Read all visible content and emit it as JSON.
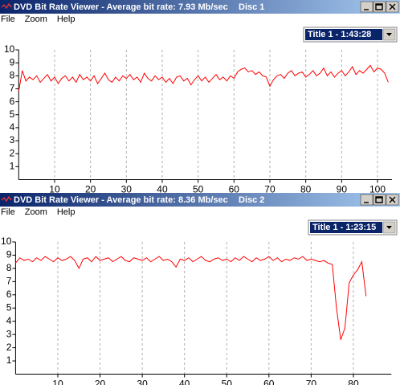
{
  "windows": [
    {
      "title": "DVD Bit Rate Viewer - Average bit rate: 7.93 Mb/sec",
      "disc": "Disc 1",
      "menu": [
        "File",
        "Zoom",
        "Help"
      ],
      "selector": "Title 1 - 1:43:28"
    },
    {
      "title": "DVD Bit Rate Viewer - Average bit rate: 8.36 Mb/sec",
      "disc": "Disc 2",
      "menu": [
        "File",
        "Zoom",
        "Help"
      ],
      "selector": "Title 1 - 1:23:15"
    }
  ],
  "chart_data": [
    {
      "type": "line",
      "xlim": [
        0,
        104
      ],
      "ylim": [
        0,
        10
      ],
      "xticks": [
        10,
        20,
        30,
        40,
        50,
        60,
        70,
        80,
        90,
        100
      ],
      "yticks": [
        1,
        2,
        3,
        4,
        5,
        6,
        7,
        8,
        9,
        10
      ],
      "grid": true,
      "x": [
        0,
        1,
        2,
        3,
        4,
        5,
        6,
        7,
        8,
        9,
        10,
        11,
        12,
        13,
        14,
        15,
        16,
        17,
        18,
        19,
        20,
        21,
        22,
        23,
        24,
        25,
        26,
        27,
        28,
        29,
        30,
        31,
        32,
        33,
        34,
        35,
        36,
        37,
        38,
        39,
        40,
        41,
        42,
        43,
        44,
        45,
        46,
        47,
        48,
        49,
        50,
        51,
        52,
        53,
        54,
        55,
        56,
        57,
        58,
        59,
        60,
        61,
        62,
        63,
        64,
        65,
        66,
        67,
        68,
        69,
        70,
        71,
        72,
        73,
        74,
        75,
        76,
        77,
        78,
        79,
        80,
        81,
        82,
        83,
        84,
        85,
        86,
        87,
        88,
        89,
        90,
        91,
        92,
        93,
        94,
        95,
        96,
        97,
        98,
        99,
        100,
        101,
        102,
        103
      ],
      "series": [
        {
          "color": "#ff0000",
          "values": [
            6.8,
            8.4,
            7.6,
            7.9,
            7.7,
            8.0,
            7.5,
            7.8,
            8.1,
            7.6,
            7.9,
            7.4,
            7.8,
            8.0,
            7.6,
            7.9,
            7.5,
            8.1,
            7.7,
            7.9,
            7.6,
            8.0,
            7.4,
            7.8,
            8.2,
            7.7,
            7.5,
            7.9,
            7.6,
            8.0,
            7.8,
            8.1,
            7.7,
            7.9,
            7.5,
            8.2,
            7.8,
            7.6,
            8.0,
            7.7,
            7.9,
            7.5,
            7.8,
            7.4,
            7.9,
            8.0,
            7.6,
            7.8,
            7.3,
            7.7,
            8.0,
            7.6,
            7.9,
            7.5,
            7.8,
            8.1,
            7.7,
            7.9,
            7.6,
            8.0,
            7.8,
            8.3,
            8.5,
            8.6,
            8.3,
            8.4,
            8.1,
            8.3,
            8.0,
            7.9,
            7.2,
            7.7,
            8.0,
            8.1,
            7.8,
            8.2,
            8.4,
            8.0,
            8.2,
            8.3,
            7.9,
            8.1,
            8.4,
            8.0,
            8.2,
            8.6,
            8.0,
            8.3,
            7.9,
            8.2,
            8.4,
            8.0,
            8.3,
            8.7,
            8.1,
            8.4,
            8.2,
            8.5,
            8.8,
            8.3,
            8.6,
            8.5,
            8.2,
            7.5
          ]
        }
      ]
    },
    {
      "type": "line",
      "xlim": [
        0,
        89
      ],
      "ylim": [
        0,
        10
      ],
      "xticks": [
        10,
        20,
        30,
        40,
        50,
        60,
        70,
        80
      ],
      "yticks": [
        1,
        2,
        3,
        4,
        5,
        6,
        7,
        8,
        9,
        10
      ],
      "grid": true,
      "x": [
        0,
        1,
        2,
        3,
        4,
        5,
        6,
        7,
        8,
        9,
        10,
        11,
        12,
        13,
        14,
        15,
        16,
        17,
        18,
        19,
        20,
        21,
        22,
        23,
        24,
        25,
        26,
        27,
        28,
        29,
        30,
        31,
        32,
        33,
        34,
        35,
        36,
        37,
        38,
        39,
        40,
        41,
        42,
        43,
        44,
        45,
        46,
        47,
        48,
        49,
        50,
        51,
        52,
        53,
        54,
        55,
        56,
        57,
        58,
        59,
        60,
        61,
        62,
        63,
        64,
        65,
        66,
        67,
        68,
        69,
        70,
        71,
        72,
        73,
        74,
        75,
        76,
        77,
        78,
        79,
        80,
        81,
        82,
        83
      ],
      "series": [
        {
          "color": "#ff0000",
          "values": [
            8.4,
            8.8,
            8.6,
            8.7,
            8.5,
            8.8,
            8.6,
            8.9,
            8.7,
            8.5,
            8.8,
            8.6,
            8.7,
            8.9,
            8.6,
            8.0,
            8.7,
            8.8,
            8.5,
            8.9,
            8.6,
            8.7,
            8.8,
            8.5,
            8.7,
            8.9,
            8.6,
            8.5,
            8.8,
            8.7,
            8.6,
            8.8,
            8.5,
            8.7,
            8.9,
            8.6,
            8.7,
            8.5,
            8.1,
            8.7,
            8.6,
            8.8,
            8.5,
            8.7,
            8.9,
            8.6,
            8.5,
            8.7,
            8.8,
            8.6,
            8.7,
            8.5,
            8.8,
            8.6,
            8.9,
            8.7,
            8.5,
            8.8,
            8.6,
            8.7,
            8.9,
            8.6,
            8.8,
            8.5,
            8.7,
            8.6,
            8.8,
            8.7,
            8.9,
            8.6,
            8.7,
            8.6,
            8.5,
            8.6,
            8.4,
            8.3,
            5.0,
            2.6,
            3.5,
            6.9,
            7.5,
            7.9,
            8.5,
            5.9
          ]
        }
      ]
    }
  ]
}
